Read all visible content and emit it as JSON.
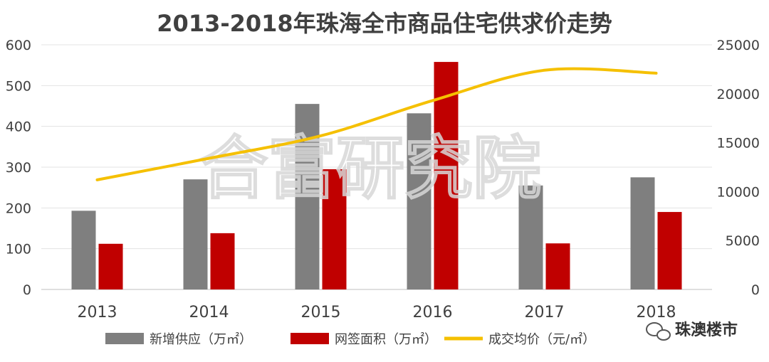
{
  "chart_data": {
    "type": "bar",
    "title": "2013-2018年珠海全市商品住宅供求价走势",
    "categories": [
      "2013",
      "2014",
      "2015",
      "2016",
      "2017",
      "2018"
    ],
    "series": [
      {
        "name": "新增供应（万㎡）",
        "type": "bar",
        "axis": "left",
        "color": "#7f7f7f",
        "values": [
          193,
          270,
          455,
          432,
          255,
          275
        ]
      },
      {
        "name": "网签面积（万㎡）",
        "type": "bar",
        "axis": "left",
        "color": "#c00000",
        "values": [
          112,
          138,
          295,
          558,
          113,
          190
        ]
      },
      {
        "name": "成交均价（元/㎡）",
        "type": "line",
        "axis": "right",
        "color": "#f5c000",
        "values": [
          11200,
          13400,
          15700,
          19300,
          22400,
          22100
        ]
      }
    ],
    "y_left": {
      "min": 0,
      "max": 600,
      "ticks": [
        0,
        100,
        200,
        300,
        400,
        500,
        600
      ]
    },
    "y_right": {
      "min": 0,
      "max": 25000,
      "ticks": [
        0,
        5000,
        10000,
        15000,
        20000,
        25000
      ]
    },
    "grid": true,
    "legend": "bottom"
  },
  "watermark": "合富研究院",
  "badge": {
    "icon": "wechat-icon",
    "text": "珠澳楼市"
  }
}
